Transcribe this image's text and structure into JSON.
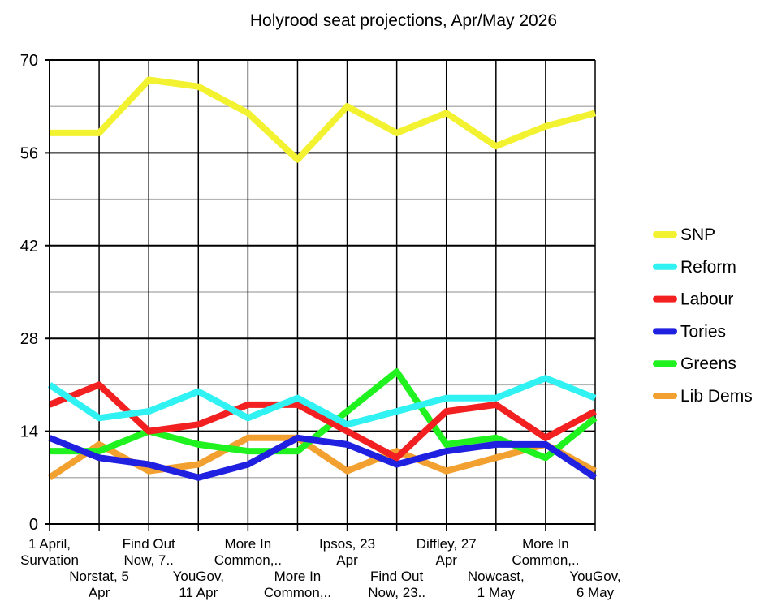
{
  "chart_data": {
    "type": "line",
    "title": "Holyrood seat projections, Apr/May 2026",
    "xlabel": "",
    "ylabel": "",
    "ylim": [
      0,
      70
    ],
    "yticks": [
      "0",
      "14",
      "28",
      "42",
      "56",
      "70"
    ],
    "grid": true,
    "legend_position": "right",
    "categories": [
      [
        "1 April,",
        "Survation"
      ],
      [
        "Norstat, 5",
        "Apr"
      ],
      [
        "Find Out",
        "Now, 7.."
      ],
      [
        "YouGov,",
        "11 Apr"
      ],
      [
        "More In",
        "Common,.."
      ],
      [
        "More In",
        "Common,.."
      ],
      [
        "Ipsos, 23",
        "Apr"
      ],
      [
        "Find Out",
        "Now, 23.."
      ],
      [
        "Diffley, 27",
        "Apr"
      ],
      [
        "Nowcast,",
        "1 May"
      ],
      [
        "More In",
        "Common,.."
      ],
      [
        "YouGov,",
        "6 May"
      ]
    ],
    "series": [
      {
        "name": "SNP",
        "color": "#f2f230",
        "values": [
          59,
          59,
          67,
          66,
          62,
          55,
          63,
          59,
          62,
          57,
          60,
          62
        ]
      },
      {
        "name": "Reform",
        "color": "#30f2f2",
        "values": [
          21,
          16,
          17,
          20,
          16,
          19,
          15,
          17,
          19,
          19,
          22,
          19
        ]
      },
      {
        "name": "Labour",
        "color": "#f22020",
        "values": [
          18,
          21,
          14,
          15,
          18,
          18,
          14,
          10,
          17,
          18,
          13,
          17
        ]
      },
      {
        "name": "Tories",
        "color": "#2020e0",
        "values": [
          13,
          10,
          9,
          7,
          9,
          13,
          12,
          9,
          11,
          12,
          12,
          7
        ]
      },
      {
        "name": "Greens",
        "color": "#20f220",
        "values": [
          11,
          11,
          14,
          12,
          11,
          11,
          17,
          23,
          12,
          13,
          10,
          16
        ]
      },
      {
        "name": "Lib Dems",
        "color": "#f2a030",
        "values": [
          7,
          12,
          8,
          9,
          13,
          13,
          8,
          11,
          8,
          10,
          12,
          8
        ]
      }
    ]
  }
}
